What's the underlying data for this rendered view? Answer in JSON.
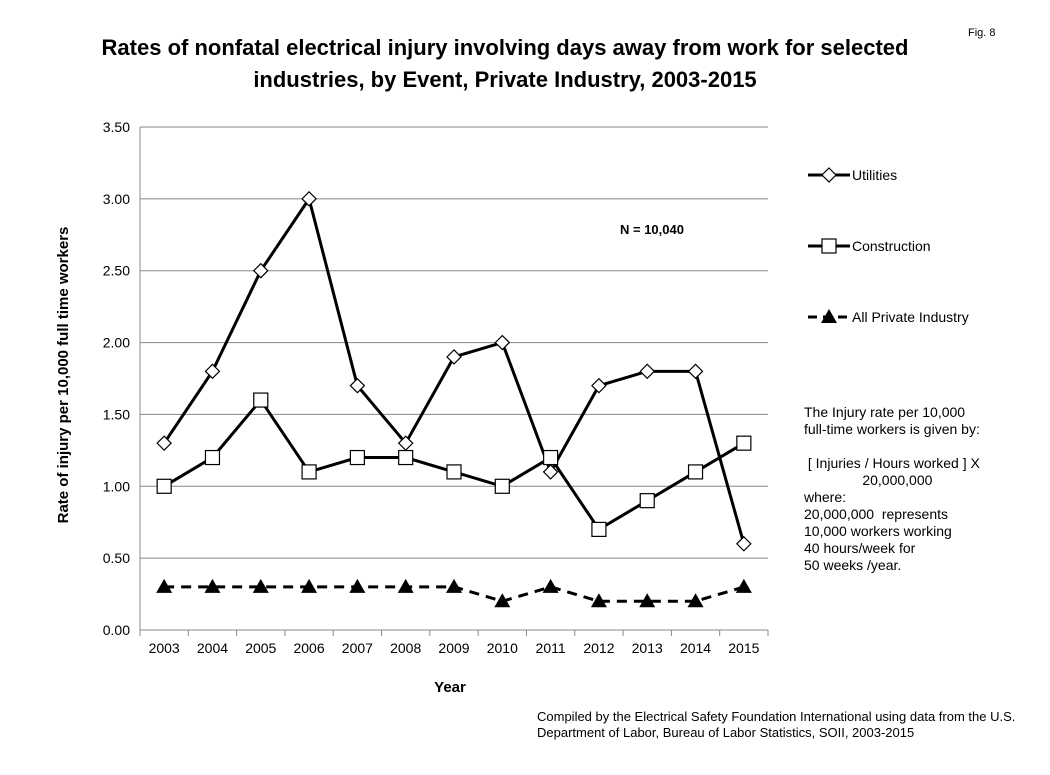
{
  "fig_label": "Fig. 8",
  "chart_data": {
    "type": "line",
    "title": "Rates of nonfatal electrical injury involving days away from work for selected industries, by Event, Private Industry, 2003-2015",
    "xlabel": "Year",
    "ylabel": "Rate of injury per 10,000 full time workers",
    "ylim": [
      0,
      3.5
    ],
    "yticks": [
      "0.00",
      "0.50",
      "1.00",
      "1.50",
      "2.00",
      "2.50",
      "3.00",
      "3.50"
    ],
    "grid": true,
    "legend_position": "right",
    "categories": [
      "2003",
      "2004",
      "2005",
      "2006",
      "2007",
      "2008",
      "2009",
      "2010",
      "2011",
      "2012",
      "2013",
      "2014",
      "2015"
    ],
    "series": [
      {
        "name": "Utilities",
        "marker": "diamond",
        "dash": false,
        "values": [
          1.3,
          1.8,
          2.5,
          3.0,
          1.7,
          1.3,
          1.9,
          2.0,
          1.1,
          1.7,
          1.8,
          1.8,
          0.6
        ]
      },
      {
        "name": "Construction",
        "marker": "square",
        "dash": false,
        "values": [
          1.0,
          1.2,
          1.6,
          1.1,
          1.2,
          1.2,
          1.1,
          1.0,
          1.2,
          0.7,
          0.9,
          1.1,
          1.3
        ]
      },
      {
        "name": "All Private Industry",
        "marker": "triangle",
        "dash": true,
        "values": [
          0.3,
          0.3,
          0.3,
          0.3,
          0.3,
          0.3,
          0.3,
          0.2,
          0.3,
          0.2,
          0.2,
          0.2,
          0.3
        ]
      }
    ],
    "annotation": "N = 10,040"
  },
  "note": "The Injury rate per 10,000\nfull-time workers is given by:\n\n [ Injuries / Hours worked ] X\n               20,000,000\nwhere:\n20,000,000  represents\n10,000 workers working\n40 hours/week for\n50 weeks /year.",
  "credit": "Compiled by the Electrical Safety Foundation International using data from the U.S. Department of Labor, Bureau of Labor Statistics, SOII, 2003-2015"
}
